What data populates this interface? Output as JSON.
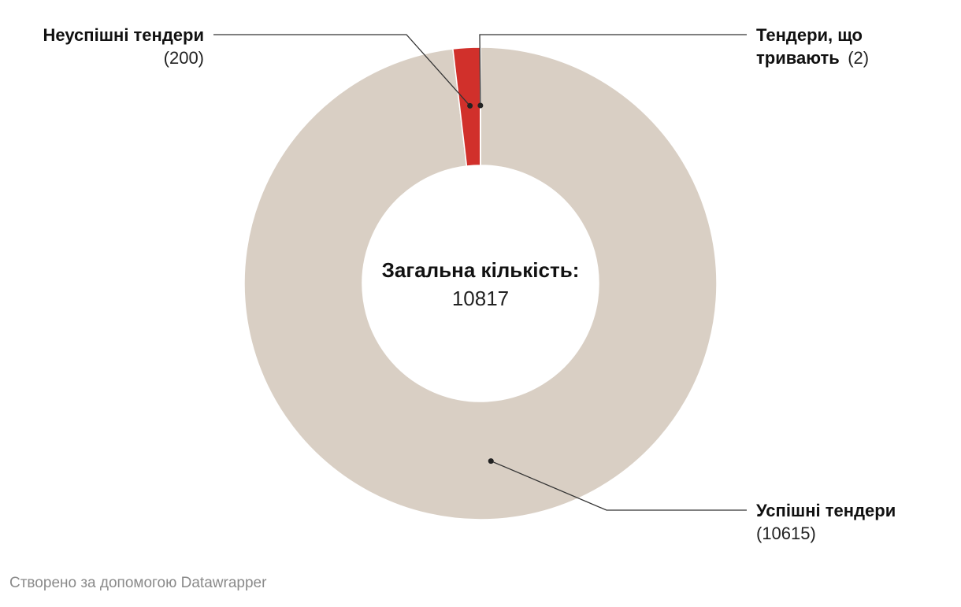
{
  "chart_data": {
    "type": "pie",
    "variant": "donut",
    "categories": [
      "Успішні тендери",
      "Неуспішні тендери",
      "Тендери, що тривають"
    ],
    "values": [
      10615,
      200,
      2
    ],
    "colors": [
      "#d9cfc4",
      "#d1302b",
      "#d9cfc4"
    ],
    "center_label": "Загальна кількість:",
    "center_value": "10817",
    "labels": [
      {
        "name": "Неуспішні тендери",
        "name_lines": [
          "Неуспішні тендери"
        ],
        "value": "(200)"
      },
      {
        "name": "Тендери, що тривають",
        "name_lines": [
          "Тендери, що",
          "тривають"
        ],
        "value": "(2)"
      },
      {
        "name": "Успішні тендери",
        "name_lines": [
          "Успішні тендери"
        ],
        "value": "(10615)"
      }
    ]
  },
  "footer": {
    "credit": "Створено за допомогою Datawrapper"
  }
}
